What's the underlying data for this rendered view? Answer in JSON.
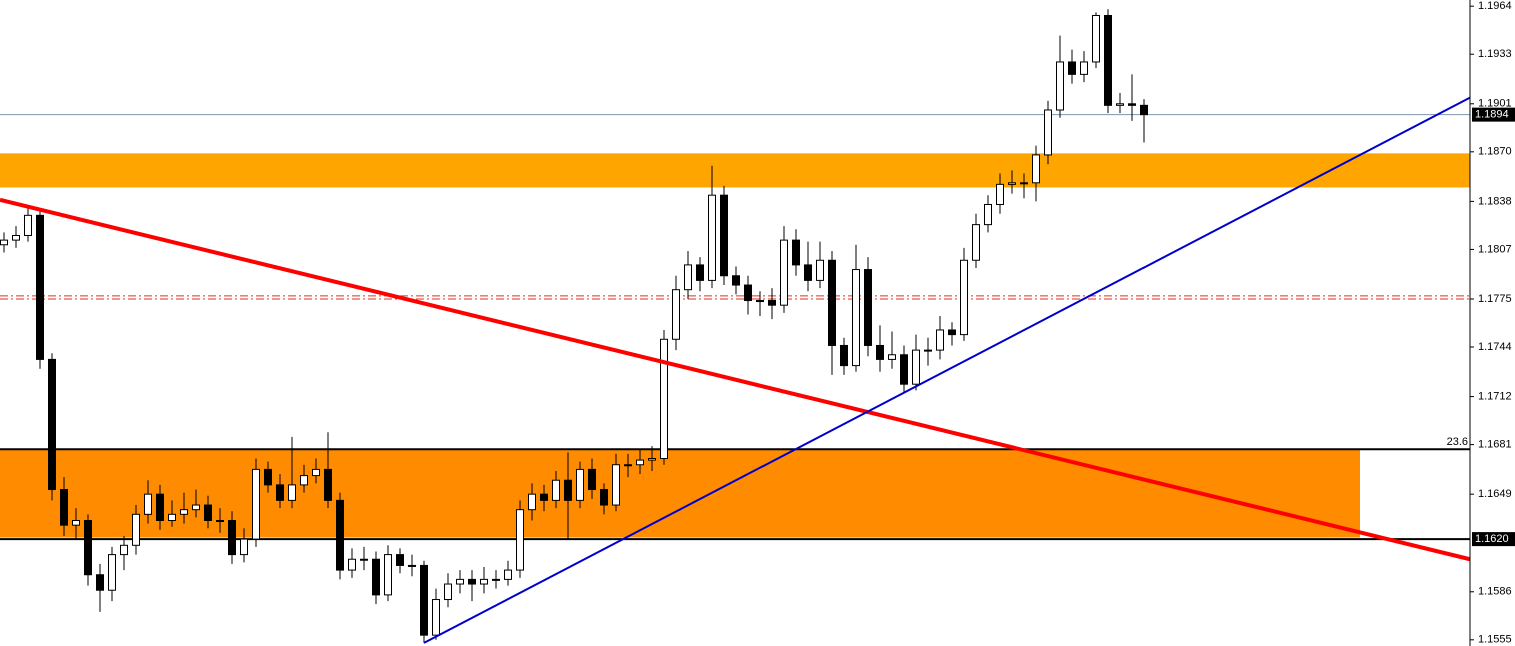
{
  "chart_data": {
    "type": "candlestick",
    "ylim": [
      1.1551,
      1.1968
    ],
    "yticks": [
      1.1964,
      1.1933,
      1.1901,
      {
        "value": 1.187,
        "label": "1.1870"
      },
      1.1838,
      1.1807,
      1.1775,
      1.1744,
      1.1712,
      1.1681,
      1.1649,
      1.1586,
      1.1555
    ],
    "zones": [
      {
        "from": 1.1847,
        "to": 1.1869,
        "color": "#ffa500"
      },
      {
        "from": 1.1621,
        "to": 1.1678,
        "color": "#ff8c00"
      }
    ],
    "hlines": [
      {
        "value": 1.1678,
        "label": "23.6"
      },
      {
        "value": 1.162,
        "label": "1.1620"
      }
    ],
    "current_price": 1.1894,
    "dashed_levels": [
      1.1777,
      1.1775
    ],
    "trendlines": [
      {
        "start": 1.1839,
        "end": 1.1607,
        "color": "#ff0000"
      },
      {
        "start": 1.1553,
        "end": 1.1905,
        "color": "#0000cc"
      }
    ],
    "candles": [
      [
        1.181,
        1.1818,
        1.1805,
        1.1813
      ],
      [
        1.1813,
        1.1822,
        1.1808,
        1.1816
      ],
      [
        1.1816,
        1.1835,
        1.1812,
        1.1829
      ],
      [
        1.1829,
        1.1832,
        1.173,
        1.1736
      ],
      [
        1.1736,
        1.174,
        1.1645,
        1.1652
      ],
      [
        1.1652,
        1.166,
        1.1622,
        1.1629
      ],
      [
        1.1629,
        1.164,
        1.162,
        1.1632
      ],
      [
        1.1632,
        1.1636,
        1.159,
        1.1597
      ],
      [
        1.1597,
        1.1604,
        1.1573,
        1.1587
      ],
      [
        1.1587,
        1.1615,
        1.158,
        1.161
      ],
      [
        1.161,
        1.1622,
        1.16,
        1.1616
      ],
      [
        1.1616,
        1.1642,
        1.161,
        1.1636
      ],
      [
        1.1636,
        1.1658,
        1.163,
        1.1649
      ],
      [
        1.1649,
        1.1655,
        1.1626,
        1.1632
      ],
      [
        1.1632,
        1.1645,
        1.1628,
        1.1636
      ],
      [
        1.1636,
        1.165,
        1.163,
        1.1639
      ],
      [
        1.1639,
        1.1652,
        1.1634,
        1.1642
      ],
      [
        1.1642,
        1.1648,
        1.1627,
        1.1632
      ],
      [
        1.1632,
        1.164,
        1.1624,
        1.1632
      ],
      [
        1.1632,
        1.1638,
        1.1604,
        1.161
      ],
      [
        1.161,
        1.1627,
        1.1605,
        1.162
      ],
      [
        1.162,
        1.1672,
        1.1615,
        1.1665
      ],
      [
        1.1665,
        1.167,
        1.165,
        1.1655
      ],
      [
        1.1655,
        1.1662,
        1.164,
        1.1645
      ],
      [
        1.1645,
        1.1686,
        1.164,
        1.1655
      ],
      [
        1.1655,
        1.1668,
        1.165,
        1.1661
      ],
      [
        1.1661,
        1.1672,
        1.1656,
        1.1665
      ],
      [
        1.1665,
        1.1689,
        1.164,
        1.1645
      ],
      [
        1.1645,
        1.165,
        1.1594,
        1.16
      ],
      [
        1.16,
        1.1614,
        1.1595,
        1.1607
      ],
      [
        1.1607,
        1.1615,
        1.16,
        1.1607
      ],
      [
        1.1607,
        1.1612,
        1.1578,
        1.1584
      ],
      [
        1.1584,
        1.1616,
        1.158,
        1.161
      ],
      [
        1.161,
        1.1614,
        1.1598,
        1.1603
      ],
      [
        1.1603,
        1.161,
        1.1596,
        1.1603
      ],
      [
        1.1603,
        1.1606,
        1.1553,
        1.1558
      ],
      [
        1.1558,
        1.1588,
        1.1555,
        1.1581
      ],
      [
        1.1581,
        1.1598,
        1.1576,
        1.1591
      ],
      [
        1.1591,
        1.16,
        1.1585,
        1.1594
      ],
      [
        1.1594,
        1.16,
        1.158,
        1.1591
      ],
      [
        1.1591,
        1.1602,
        1.1585,
        1.1594
      ],
      [
        1.1594,
        1.16,
        1.1588,
        1.1594
      ],
      [
        1.1594,
        1.1606,
        1.159,
        1.16
      ],
      [
        1.16,
        1.1645,
        1.1595,
        1.1639
      ],
      [
        1.1639,
        1.1656,
        1.1632,
        1.1649
      ],
      [
        1.1649,
        1.1655,
        1.1638,
        1.1645
      ],
      [
        1.1645,
        1.1664,
        1.164,
        1.1658
      ],
      [
        1.1658,
        1.1676,
        1.162,
        1.1645
      ],
      [
        1.1645,
        1.167,
        1.164,
        1.1665
      ],
      [
        1.1665,
        1.1672,
        1.1646,
        1.1652
      ],
      [
        1.1652,
        1.1656,
        1.1636,
        1.1642
      ],
      [
        1.1642,
        1.1675,
        1.1638,
        1.1668
      ],
      [
        1.1668,
        1.1675,
        1.166,
        1.1668
      ],
      [
        1.1668,
        1.1678,
        1.1662,
        1.1671
      ],
      [
        1.1671,
        1.168,
        1.1664,
        1.1672
      ],
      [
        1.1672,
        1.1755,
        1.1668,
        1.1749
      ],
      [
        1.1749,
        1.179,
        1.1742,
        1.1781
      ],
      [
        1.1781,
        1.1806,
        1.1775,
        1.1797
      ],
      [
        1.1797,
        1.1802,
        1.178,
        1.1787
      ],
      [
        1.1787,
        1.1861,
        1.1782,
        1.1842
      ],
      [
        1.1842,
        1.1848,
        1.1784,
        1.179
      ],
      [
        1.179,
        1.1796,
        1.1778,
        1.1784
      ],
      [
        1.1784,
        1.179,
        1.1765,
        1.1774
      ],
      [
        1.1774,
        1.178,
        1.1764,
        1.1774
      ],
      [
        1.1774,
        1.1782,
        1.1762,
        1.1771
      ],
      [
        1.1771,
        1.1822,
        1.1766,
        1.1813
      ],
      [
        1.1813,
        1.182,
        1.179,
        1.1797
      ],
      [
        1.1797,
        1.1812,
        1.178,
        1.1787
      ],
      [
        1.1787,
        1.1812,
        1.1782,
        1.18
      ],
      [
        1.18,
        1.1806,
        1.1726,
        1.1745
      ],
      [
        1.1745,
        1.175,
        1.1726,
        1.1732
      ],
      [
        1.1732,
        1.181,
        1.1728,
        1.1794
      ],
      [
        1.1794,
        1.1802,
        1.1738,
        1.1745
      ],
      [
        1.1745,
        1.1758,
        1.1728,
        1.1736
      ],
      [
        1.1736,
        1.1754,
        1.173,
        1.1739
      ],
      [
        1.1739,
        1.1745,
        1.1714,
        1.172
      ],
      [
        1.172,
        1.1752,
        1.1716,
        1.1742
      ],
      [
        1.1742,
        1.175,
        1.1732,
        1.1742
      ],
      [
        1.1742,
        1.1764,
        1.1736,
        1.1755
      ],
      [
        1.1755,
        1.176,
        1.1745,
        1.1752
      ],
      [
        1.1752,
        1.1808,
        1.1748,
        1.18
      ],
      [
        1.18,
        1.183,
        1.1795,
        1.1823
      ],
      [
        1.1823,
        1.1842,
        1.1818,
        1.1836
      ],
      [
        1.1836,
        1.1856,
        1.183,
        1.1849
      ],
      [
        1.1849,
        1.1858,
        1.1843,
        1.185
      ],
      [
        1.185,
        1.1856,
        1.184,
        1.185
      ],
      [
        1.185,
        1.1874,
        1.1838,
        1.1868
      ],
      [
        1.1868,
        1.1903,
        1.1862,
        1.1897
      ],
      [
        1.1897,
        1.1945,
        1.1892,
        1.1928
      ],
      [
        1.1928,
        1.1936,
        1.1914,
        1.192
      ],
      [
        1.192,
        1.1935,
        1.1915,
        1.1928
      ],
      [
        1.1928,
        1.196,
        1.1924,
        1.1958
      ],
      [
        1.1958,
        1.1962,
        1.1895,
        1.19
      ],
      [
        1.19,
        1.1908,
        1.1895,
        1.1901
      ],
      [
        1.1901,
        1.192,
        1.189,
        1.19
      ],
      [
        1.19,
        1.1904,
        1.1876,
        1.1894
      ]
    ]
  }
}
